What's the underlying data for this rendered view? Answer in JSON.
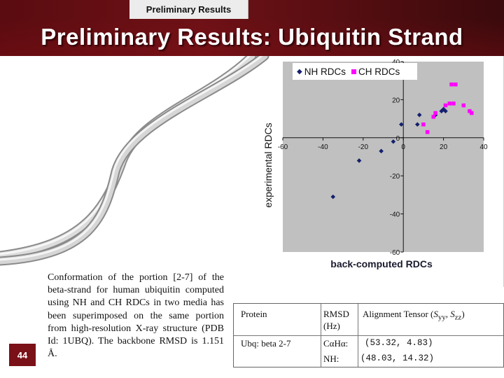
{
  "header": {
    "tab_label": "Preliminary Results",
    "title": "Preliminary Results: Ubiquitin Strand"
  },
  "slide_number": "44",
  "caption": "Conformation of the portion [2-7] of the beta-strand for human ubiquitin computed using NH and CH RDCs in two media has been superimposed on the same portion from high-resolution X-ray structure (PDB Id: 1UBQ). The backbone RMSD is 1.151 Å.",
  "table": {
    "headers": {
      "protein": "Protein",
      "rmsd": "RMSD (Hz)",
      "tensor": "Alignment Tensor (Syy, Szz)"
    },
    "row": {
      "protein": "Ubq: beta 2-7",
      "ch_label": "CαHα:",
      "nh_label": "NH:",
      "ch_value": "(53.32, 4.83)",
      "nh_value": "(48.03, 14.32)"
    }
  },
  "colors": {
    "nh": "#14206e",
    "ch": "#ff00ff",
    "plot_bg": "#c0c0c0",
    "header": "#6e1116"
  },
  "chart_data": {
    "type": "scatter",
    "title": "",
    "xlabel": "back-computed RDCs",
    "ylabel": "experimental RDCs",
    "xlim": [
      -60,
      40
    ],
    "ylim": [
      -60,
      40
    ],
    "x_ticks": [
      -60,
      -40,
      -20,
      0,
      20,
      40
    ],
    "y_ticks": [
      -60,
      -40,
      -20,
      0,
      20,
      40
    ],
    "grid": false,
    "legend": "top",
    "series": [
      {
        "name": "NH RDCs",
        "marker": "diamond",
        "points": [
          [
            -35,
            -31
          ],
          [
            -22,
            -12
          ],
          [
            -11,
            -7
          ],
          [
            -5,
            -2
          ],
          [
            -1,
            7
          ],
          [
            7,
            7
          ],
          [
            8,
            12
          ],
          [
            16,
            12
          ],
          [
            19,
            14
          ],
          [
            20,
            15
          ],
          [
            21,
            14
          ]
        ]
      },
      {
        "name": "CH RDCs",
        "marker": "square",
        "points": [
          [
            10,
            7
          ],
          [
            12,
            3
          ],
          [
            15,
            11
          ],
          [
            16,
            13
          ],
          [
            21,
            17
          ],
          [
            23,
            18
          ],
          [
            25,
            18
          ],
          [
            30,
            17
          ],
          [
            33,
            14
          ],
          [
            34,
            13
          ],
          [
            24,
            28
          ],
          [
            26,
            28
          ]
        ]
      }
    ]
  }
}
